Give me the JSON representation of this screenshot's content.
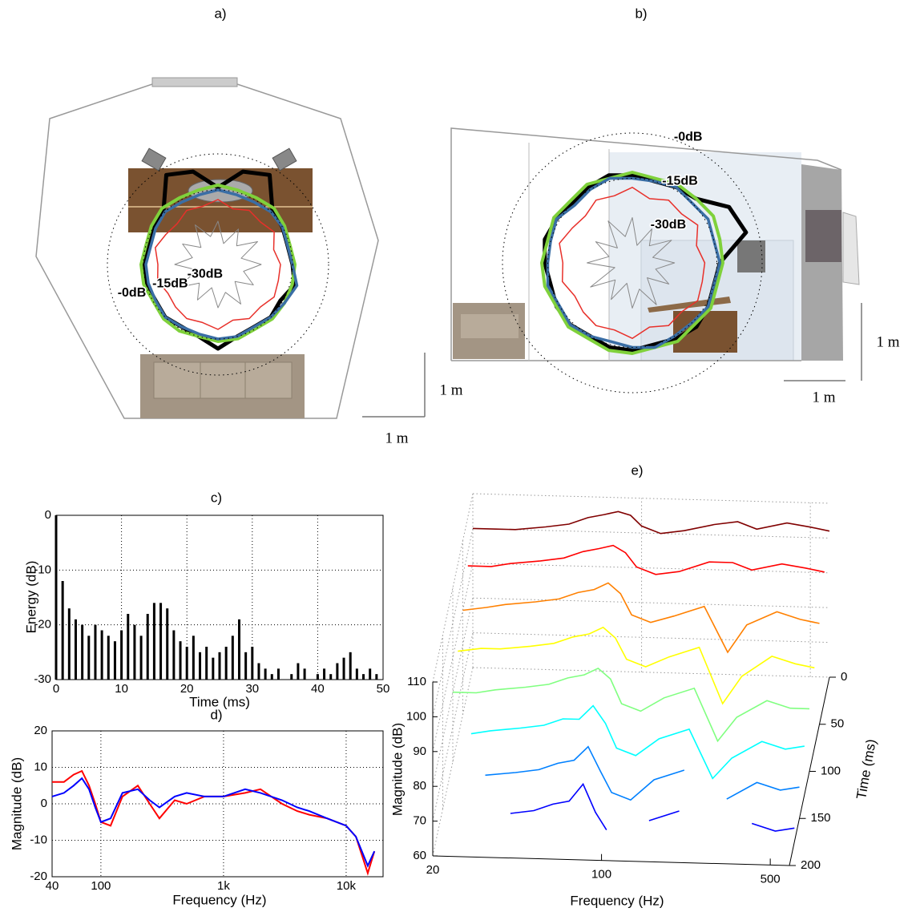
{
  "chart_data": [
    {
      "type": "polar",
      "title": "a)",
      "scale_label": "1 m",
      "rlim": [
        -46,
        0
      ],
      "rticks": [
        {
          "value": 0,
          "label": "-0dB"
        },
        {
          "value": -15,
          "label": "-15dB"
        },
        {
          "value": -30,
          "label": "-30dB"
        }
      ],
      "theta": [
        0,
        15,
        30,
        45,
        60,
        75,
        90,
        105,
        120,
        135,
        150,
        165,
        180,
        195,
        210,
        225,
        240,
        255,
        270,
        285,
        300,
        315,
        330,
        345
      ],
      "series": [
        {
          "color": "#000000",
          "values": [
            -15,
            -16,
            -15,
            -14,
            -3,
            -6,
            -14,
            -6,
            -3,
            -14,
            -15,
            -16,
            -15,
            -15,
            -16,
            -15,
            -16,
            -15,
            -11,
            -15,
            -16,
            -15,
            -16,
            -13
          ]
        },
        {
          "color": "#7fd13b",
          "values": [
            -14,
            -15,
            -14,
            -13,
            -14,
            -14,
            -13,
            -14,
            -14,
            -13,
            -14,
            -15,
            -14,
            -14,
            -15,
            -14,
            -14,
            -15,
            -14,
            -14,
            -15,
            -14,
            -14,
            -14
          ]
        },
        {
          "color": "#3a6ea5",
          "values": [
            -15,
            -16,
            -15,
            -15,
            -16,
            -16,
            -15,
            -16,
            -16,
            -15,
            -16,
            -17,
            -16,
            -16,
            -16,
            -15,
            -16,
            -16,
            -15,
            -15,
            -16,
            -15,
            -14,
            -12
          ]
        },
        {
          "color": "#e8302a",
          "values": [
            -20,
            -22,
            -19,
            -21,
            -20,
            -22,
            -19,
            -21,
            -20,
            -22,
            -21,
            -19,
            -21,
            -20,
            -22,
            -21,
            -20,
            -21,
            -19,
            -22,
            -20,
            -21,
            -19,
            -20
          ]
        },
        {
          "color": "#888888",
          "values": [
            -28,
            -36,
            -27,
            -35,
            -29,
            -37,
            -28,
            -34,
            -27,
            -36,
            -29,
            -35,
            -28,
            -37,
            -27,
            -35,
            -29,
            -36,
            -28,
            -34,
            -27,
            -36,
            -29,
            -35
          ]
        }
      ]
    },
    {
      "type": "polar",
      "title": "b)",
      "scale_label": "1 m",
      "rlim": [
        -43,
        0
      ],
      "rticks": [
        {
          "value": 0,
          "label": "-0dB"
        },
        {
          "value": -15,
          "label": "-15dB"
        },
        {
          "value": -30,
          "label": "-30dB"
        }
      ],
      "theta": [
        0,
        15,
        30,
        45,
        60,
        75,
        90,
        105,
        120,
        135,
        150,
        165,
        180,
        195,
        210,
        225,
        240,
        255,
        270,
        285,
        300,
        315,
        330,
        345
      ],
      "series": [
        {
          "color": "#000000",
          "values": [
            -14,
            -4,
            -6,
            -13,
            -14,
            -15,
            -14,
            -13,
            -14,
            -15,
            -14,
            -13,
            -14,
            -15,
            -14,
            -14,
            -15,
            -14,
            -14,
            -15,
            -14,
            -13,
            -14,
            -15
          ]
        },
        {
          "color": "#7fd13b",
          "values": [
            -13,
            -13,
            -12,
            -13,
            -13,
            -14,
            -13,
            -14,
            -13,
            -14,
            -13,
            -14,
            -13,
            -13,
            -14,
            -13,
            -14,
            -13,
            -13,
            -14,
            -13,
            -14,
            -13,
            -14
          ]
        },
        {
          "color": "#3a6ea5",
          "values": [
            -14,
            -15,
            -14,
            -15,
            -14,
            -15,
            -15,
            -14,
            -15,
            -16,
            -14,
            -15,
            -15,
            -14,
            -15,
            -14,
            -15,
            -16,
            -15,
            -14,
            -15,
            -15,
            -14,
            -15
          ]
        },
        {
          "color": "#e8302a",
          "values": [
            -19,
            -21,
            -18,
            -20,
            -19,
            -21,
            -18,
            -20,
            -19,
            -21,
            -20,
            -18,
            -20,
            -19,
            -21,
            -20,
            -19,
            -20,
            -18,
            -21,
            -19,
            -20,
            -18,
            -19
          ]
        },
        {
          "color": "#888888",
          "values": [
            -29,
            -36,
            -28,
            -35,
            -30,
            -37,
            -28,
            -34,
            -27,
            -36,
            -29,
            -35,
            -28,
            -37,
            -27,
            -35,
            -29,
            -36,
            -28,
            -34,
            -27,
            -36,
            -29,
            -35
          ]
        }
      ]
    },
    {
      "type": "bar",
      "title": "c)",
      "xlabel": "Time (ms)",
      "ylabel": "Energy (dB)",
      "color": "#000000",
      "grid": true,
      "x": [
        0,
        1,
        2,
        3,
        4,
        5,
        6,
        7,
        8,
        9,
        10,
        11,
        12,
        13,
        14,
        15,
        16,
        17,
        18,
        19,
        20,
        21,
        22,
        23,
        24,
        25,
        26,
        27,
        28,
        29,
        30,
        31,
        32,
        33,
        34,
        35,
        36,
        37,
        38,
        39,
        40,
        41,
        42,
        43,
        44,
        45,
        46,
        47,
        48,
        49
      ],
      "values": [
        0,
        -12,
        -17,
        -19,
        -20,
        -22,
        -20,
        -21,
        -22,
        -23,
        -21,
        -18,
        -20,
        -22,
        -18,
        -16,
        -16,
        -17,
        -21,
        -23,
        -24,
        -22,
        -25,
        -24,
        -26,
        -25,
        -24,
        -22,
        -19,
        -25,
        -24,
        -27,
        -28,
        -29,
        -28,
        -30,
        -29,
        -27,
        -28,
        -30,
        -29,
        -28,
        -29,
        -27,
        -26,
        -25,
        -28,
        -29,
        -28,
        -29
      ],
      "xlim": [
        0,
        50
      ],
      "xticks": [
        0,
        10,
        20,
        30,
        40,
        50
      ],
      "ylim": [
        -30,
        0
      ],
      "yticks": [
        -30,
        -20,
        -10,
        0
      ]
    },
    {
      "type": "line",
      "title": "d)",
      "xlabel": "Frequency (Hz)",
      "ylabel": "Magnitude (dB)",
      "log_x": true,
      "grid": true,
      "x": [
        40,
        50,
        60,
        70,
        80,
        90,
        100,
        120,
        150,
        200,
        250,
        300,
        400,
        500,
        700,
        1000,
        1500,
        2000,
        3000,
        4000,
        5000,
        7000,
        10000,
        12000,
        15000,
        17000
      ],
      "series": [
        {
          "color": "#ff0000",
          "values": [
            6,
            6,
            8,
            9,
            5,
            0,
            -5,
            -6,
            2,
            5,
            0,
            -4,
            1,
            0,
            2,
            2,
            3,
            4,
            0,
            -2,
            -3,
            -4,
            -6,
            -9,
            -19,
            -13
          ]
        },
        {
          "color": "#0000ff",
          "values": [
            2,
            3,
            5,
            7,
            4,
            -1,
            -5,
            -4,
            3,
            4,
            1,
            -1,
            2,
            3,
            2,
            2,
            4,
            3,
            1,
            -1,
            -2,
            -4,
            -6,
            -9,
            -17,
            -13
          ]
        }
      ],
      "xlim": [
        40,
        20000
      ],
      "xticks": [
        40,
        100,
        {
          "value": 1000,
          "label": "1k"
        },
        {
          "value": 10000,
          "label": "10k"
        }
      ],
      "ylim": [
        -20,
        20
      ],
      "yticks": [
        -20,
        -10,
        0,
        10,
        20
      ]
    },
    {
      "type": "waterfall",
      "title": "e)",
      "xlabel": "Frequency (Hz)",
      "ylabel": "Magnitude (dB)",
      "zlabel": "Time (ms)",
      "log_x": true,
      "colormap": "jet",
      "x": [
        20,
        25,
        30,
        40,
        50,
        60,
        70,
        80,
        90,
        100,
        120,
        150,
        200,
        250,
        300,
        400,
        500,
        600
      ],
      "z": [
        0,
        25,
        50,
        75,
        100,
        125,
        150,
        175
      ],
      "values": [
        [
          100,
          100,
          100,
          101,
          102,
          104,
          105,
          106,
          105,
          102,
          100,
          101,
          103,
          104,
          102,
          104,
          103,
          102
        ],
        [
          96,
          96,
          97,
          98,
          99,
          101,
          102,
          103,
          101,
          97,
          95,
          96,
          99,
          99,
          97,
          99,
          98,
          97
        ],
        [
          90,
          91,
          92,
          93,
          94,
          96,
          97,
          99,
          96,
          90,
          88,
          90,
          93,
          80,
          88,
          92,
          90,
          89
        ],
        [
          85,
          86,
          86,
          87,
          88,
          90,
          91,
          93,
          90,
          84,
          82,
          85,
          88,
          72,
          80,
          86,
          84,
          83
        ],
        [
          80,
          80,
          81,
          82,
          83,
          85,
          86,
          88,
          85,
          78,
          76,
          80,
          83,
          68,
          75,
          80,
          78,
          78
        ],
        [
          null,
          75,
          76,
          77,
          78,
          80,
          80,
          84,
          79,
          72,
          70,
          75,
          78,
          64,
          70,
          75,
          73,
          74
        ],
        [
          null,
          null,
          70,
          71,
          72,
          74,
          75,
          79,
          72,
          66,
          64,
          70,
          73,
          null,
          65,
          70,
          68,
          69
        ],
        [
          null,
          null,
          null,
          66,
          67,
          69,
          70,
          75,
          67,
          62,
          null,
          65,
          68,
          null,
          null,
          65,
          63,
          64
        ]
      ],
      "xlim": [
        20,
        600
      ],
      "xticks": [
        20,
        100,
        500
      ],
      "ylim": [
        60,
        110
      ],
      "yticks": [
        60,
        70,
        80,
        90,
        100,
        110
      ],
      "zlim": [
        0,
        200
      ],
      "zticks": [
        0,
        50,
        100,
        150,
        200
      ]
    }
  ]
}
